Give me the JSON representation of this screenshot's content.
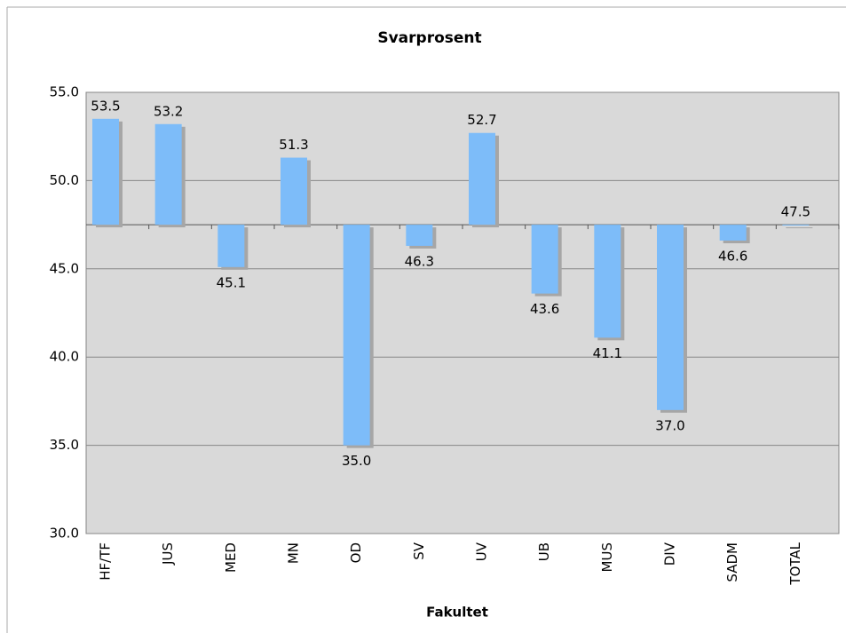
{
  "chart_data": {
    "type": "bar",
    "title": "Svarprosent",
    "x_label": "Fakultet",
    "categories": [
      "HF/TF",
      "JUS",
      "MED",
      "MN",
      "OD",
      "SV",
      "UV",
      "UB",
      "MUS",
      "DIV",
      "SADM",
      "TOTAL"
    ],
    "values": [
      53.5,
      53.2,
      45.1,
      51.3,
      35.0,
      46.3,
      52.7,
      43.6,
      41.1,
      37.0,
      46.6,
      47.5
    ],
    "value_labels": [
      "53.5",
      "53.2",
      "45.1",
      "51.3",
      "35.0",
      "46.3",
      "52.7",
      "43.6",
      "41.1",
      "37.0",
      "46.6",
      "47.5"
    ],
    "color": "#7dbcf9",
    "x_axis_crosses": 47.5,
    "ylim": [
      30,
      55
    ],
    "yticks": [
      {
        "value": 30,
        "label": "30.0"
      },
      {
        "value": 35,
        "label": "35.0"
      },
      {
        "value": 40,
        "label": "40.0"
      },
      {
        "value": 45,
        "label": "45.0"
      },
      {
        "value": 50,
        "label": "50.0"
      },
      {
        "value": 55,
        "label": "55.0"
      }
    ],
    "grid": true
  }
}
